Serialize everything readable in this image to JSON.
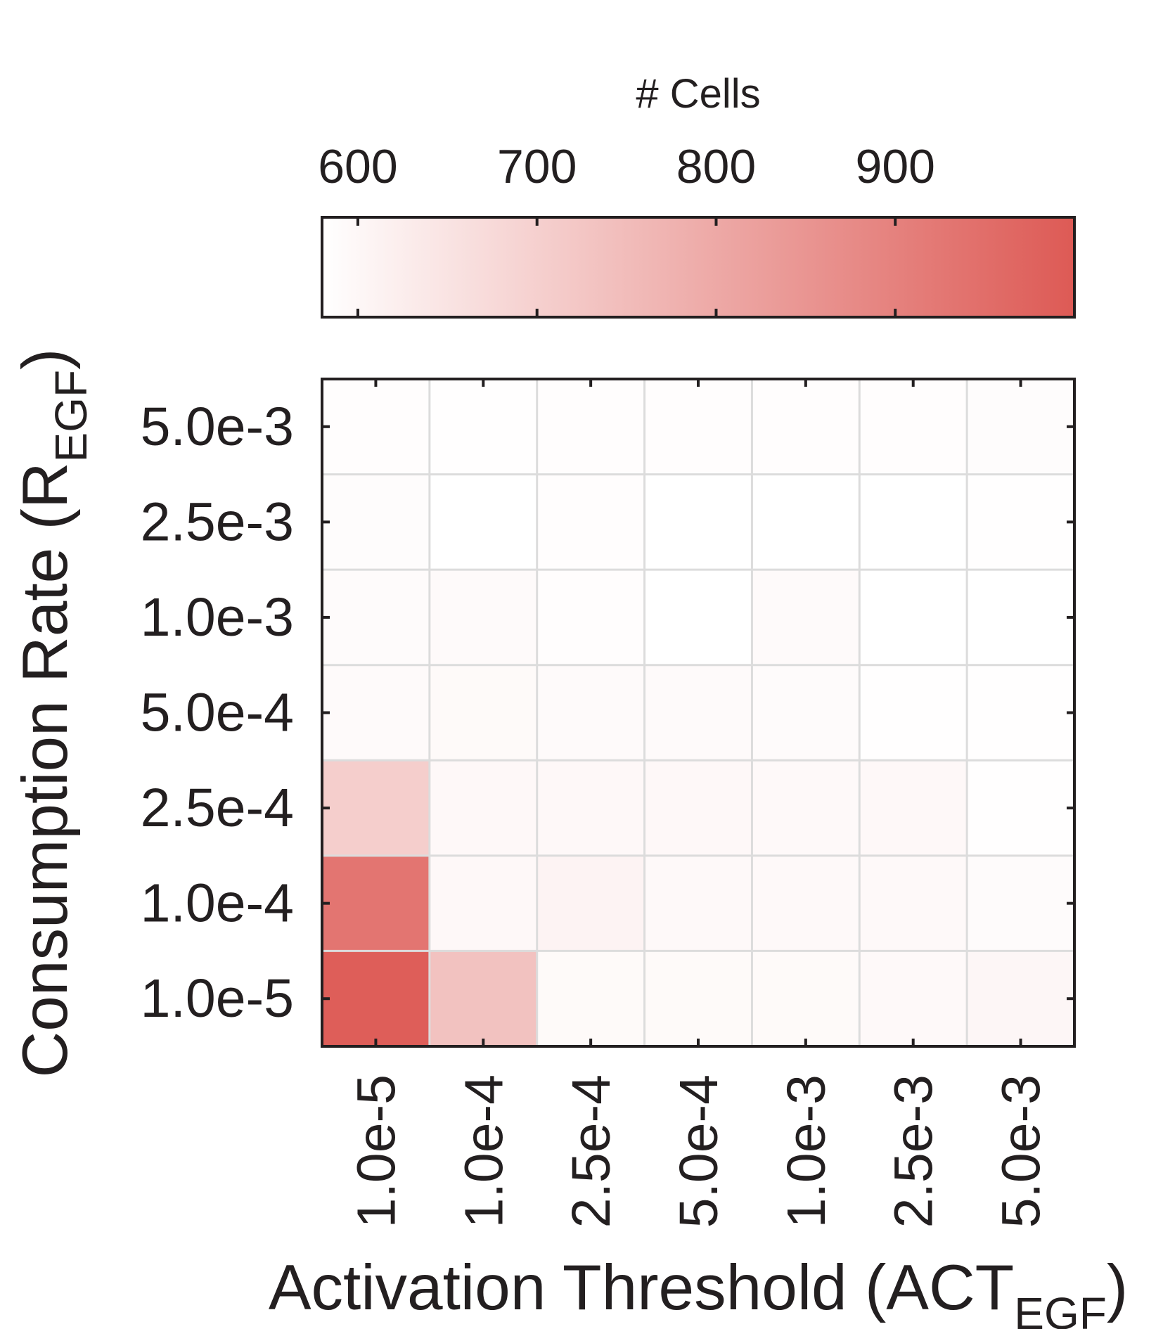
{
  "chart_data": {
    "type": "heatmap",
    "colorbar": {
      "label": "# Cells",
      "ticks": [
        600,
        700,
        800,
        900
      ],
      "range": [
        580,
        1000
      ],
      "color_low": "#ffffff",
      "color_high": "#dd5a55",
      "placement": "top"
    },
    "xlabel": {
      "main": "Activation Threshold (ACT",
      "sub": "EGF",
      "close": ")"
    },
    "ylabel": {
      "main": "Consumption Rate (R",
      "sub": "EGF",
      "close": ")"
    },
    "x_categories": [
      "1.0e-5",
      "1.0e-4",
      "2.5e-4",
      "5.0e-4",
      "1.0e-3",
      "2.5e-3",
      "5.0e-3"
    ],
    "y_categories": [
      "5.0e-3",
      "2.5e-3",
      "1.0e-3",
      "5.0e-4",
      "2.5e-4",
      "1.0e-4",
      "1.0e-5"
    ],
    "values": [
      [
        585,
        582,
        584,
        586,
        586,
        586,
        588
      ],
      [
        588,
        580,
        584,
        580,
        580,
        580,
        582
      ],
      [
        590,
        592,
        585,
        580,
        593,
        580,
        581
      ],
      [
        592,
        594,
        592,
        592,
        591,
        583,
        583
      ],
      [
        705,
        598,
        598,
        597,
        596,
        597,
        583
      ],
      [
        932,
        597,
        610,
        596,
        596,
        595,
        590
      ],
      [
        990,
        735,
        594,
        594,
        594,
        596,
        603
      ]
    ],
    "grid": true,
    "grid_color": "#dcdcdc"
  }
}
